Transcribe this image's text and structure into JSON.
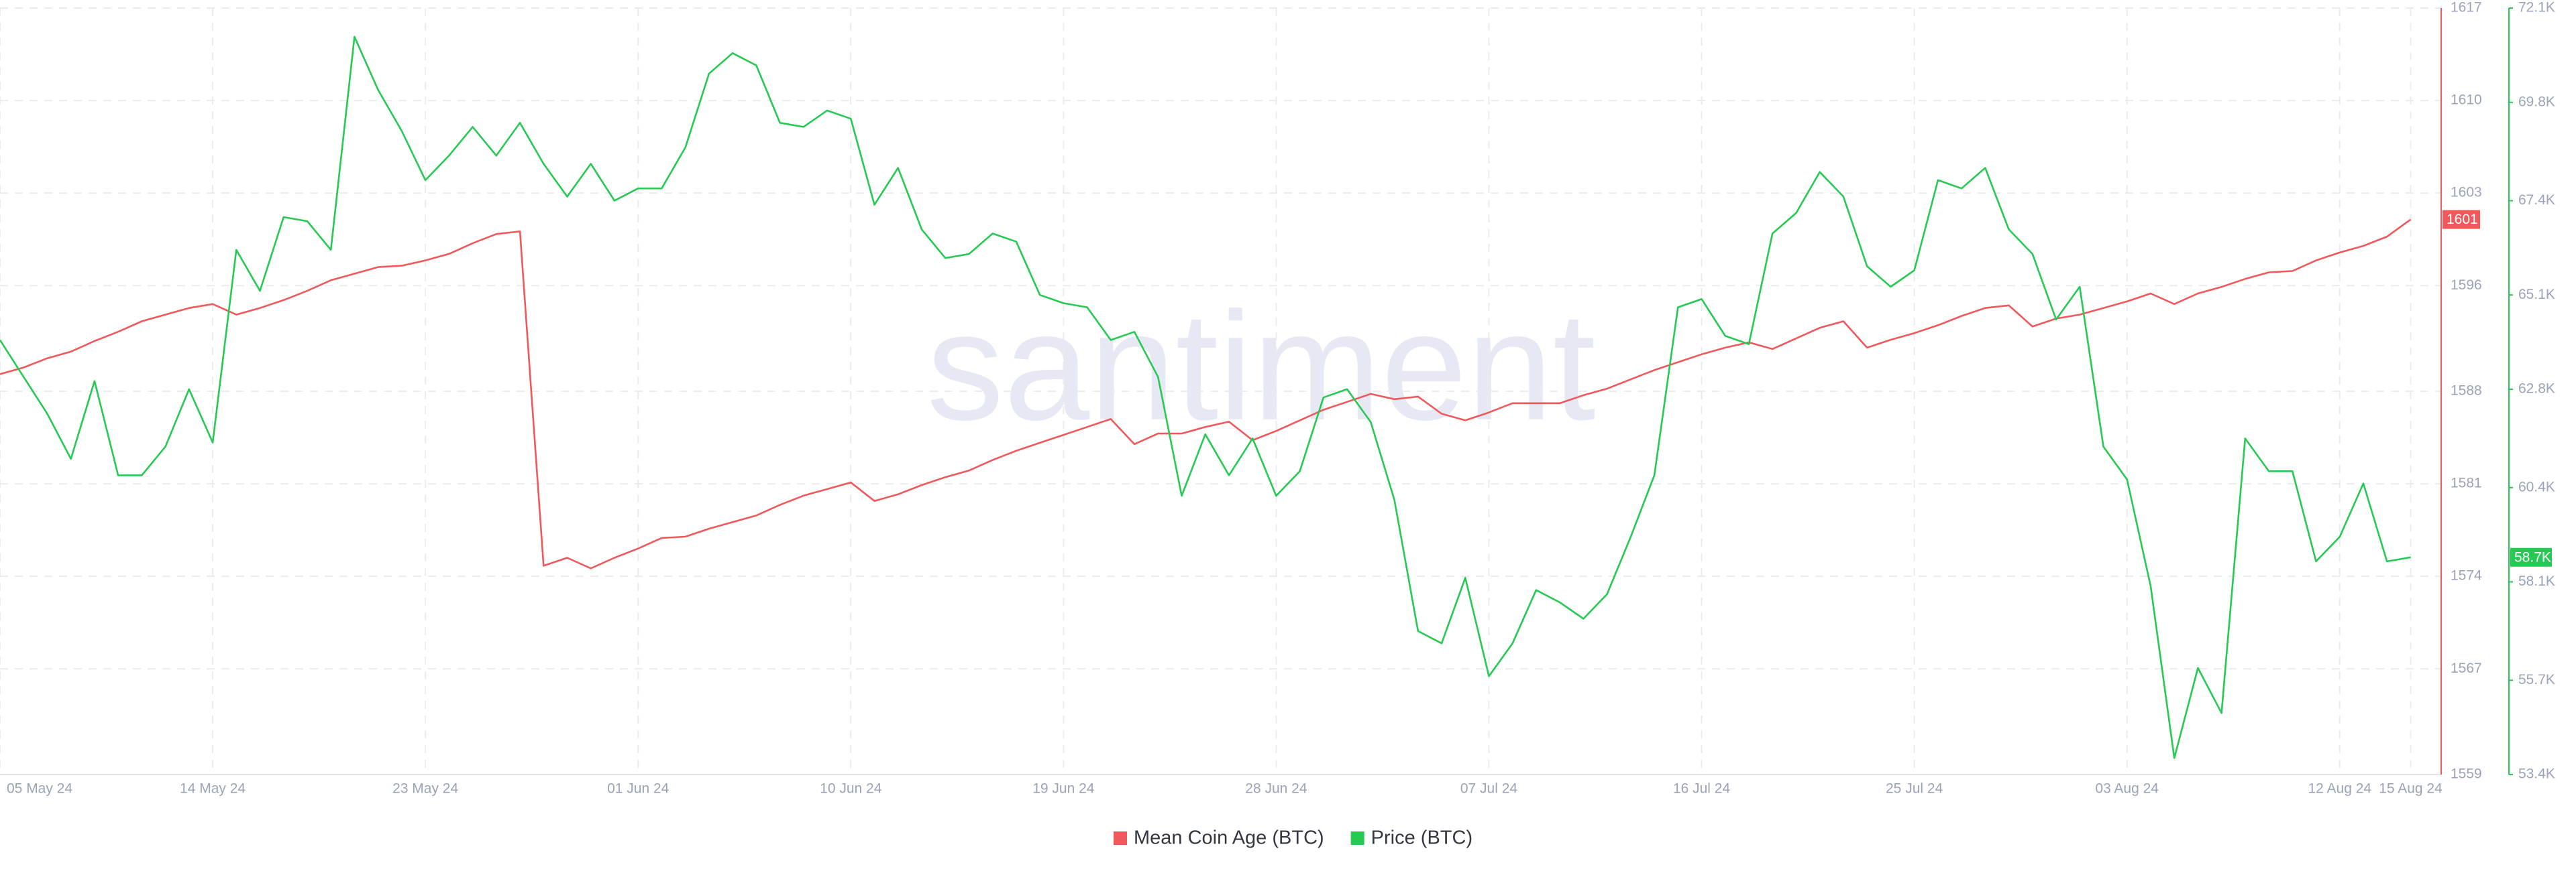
{
  "chart_data": {
    "type": "line",
    "watermark": "santiment",
    "x": [
      "2024-05-05",
      "2024-05-06",
      "2024-05-07",
      "2024-05-08",
      "2024-05-09",
      "2024-05-10",
      "2024-05-11",
      "2024-05-12",
      "2024-05-13",
      "2024-05-14",
      "2024-05-15",
      "2024-05-16",
      "2024-05-17",
      "2024-05-18",
      "2024-05-19",
      "2024-05-20",
      "2024-05-21",
      "2024-05-22",
      "2024-05-23",
      "2024-05-24",
      "2024-05-25",
      "2024-05-26",
      "2024-05-27",
      "2024-05-28",
      "2024-05-29",
      "2024-05-30",
      "2024-05-31",
      "2024-06-01",
      "2024-06-02",
      "2024-06-03",
      "2024-06-04",
      "2024-06-05",
      "2024-06-06",
      "2024-06-07",
      "2024-06-08",
      "2024-06-09",
      "2024-06-10",
      "2024-06-11",
      "2024-06-12",
      "2024-06-13",
      "2024-06-14",
      "2024-06-15",
      "2024-06-16",
      "2024-06-17",
      "2024-06-18",
      "2024-06-19",
      "2024-06-20",
      "2024-06-21",
      "2024-06-22",
      "2024-06-23",
      "2024-06-24",
      "2024-06-25",
      "2024-06-26",
      "2024-06-27",
      "2024-06-28",
      "2024-06-29",
      "2024-06-30",
      "2024-07-01",
      "2024-07-02",
      "2024-07-03",
      "2024-07-04",
      "2024-07-05",
      "2024-07-06",
      "2024-07-07",
      "2024-07-08",
      "2024-07-09",
      "2024-07-10",
      "2024-07-11",
      "2024-07-12",
      "2024-07-13",
      "2024-07-14",
      "2024-07-15",
      "2024-07-16",
      "2024-07-17",
      "2024-07-18",
      "2024-07-19",
      "2024-07-20",
      "2024-07-21",
      "2024-07-22",
      "2024-07-23",
      "2024-07-24",
      "2024-07-25",
      "2024-07-26",
      "2024-07-27",
      "2024-07-28",
      "2024-07-29",
      "2024-07-30",
      "2024-07-31",
      "2024-08-01",
      "2024-08-02",
      "2024-08-03",
      "2024-08-04",
      "2024-08-05",
      "2024-08-06",
      "2024-08-07",
      "2024-08-08",
      "2024-08-09",
      "2024-08-10",
      "2024-08-11",
      "2024-08-12",
      "2024-08-13",
      "2024-08-14",
      "2024-08-15"
    ],
    "xticks": [
      {
        "value": "2024-05-05",
        "label": "05 May 24"
      },
      {
        "value": "2024-05-14",
        "label": "14 May 24"
      },
      {
        "value": "2024-05-23",
        "label": "23 May 24"
      },
      {
        "value": "2024-06-01",
        "label": "01 Jun 24"
      },
      {
        "value": "2024-06-10",
        "label": "10 Jun 24"
      },
      {
        "value": "2024-06-19",
        "label": "19 Jun 24"
      },
      {
        "value": "2024-06-28",
        "label": "28 Jun 24"
      },
      {
        "value": "2024-07-07",
        "label": "07 Jul 24"
      },
      {
        "value": "2024-07-16",
        "label": "16 Jul 24"
      },
      {
        "value": "2024-07-25",
        "label": "25 Jul 24"
      },
      {
        "value": "2024-08-03",
        "label": "03 Aug 24"
      },
      {
        "value": "2024-08-12",
        "label": "12 Aug 24"
      },
      {
        "value": "2024-08-15",
        "label": "15 Aug 24"
      }
    ],
    "ylim": [
      1559,
      1617
    ],
    "yticks": [
      1559,
      1567,
      1574,
      1581,
      1588,
      1596,
      1603,
      1610,
      1617
    ],
    "y2lim": [
      53400,
      72100
    ],
    "y2ticks": [
      {
        "value": 53400,
        "label": "53.4K"
      },
      {
        "value": 55700,
        "label": "55.7K"
      },
      {
        "value": 58100,
        "label": "58.1K"
      },
      {
        "value": 60400,
        "label": "60.4K"
      },
      {
        "value": 62800,
        "label": "62.8K"
      },
      {
        "value": 65100,
        "label": "65.1K"
      },
      {
        "value": 67400,
        "label": "67.4K"
      },
      {
        "value": 69800,
        "label": "69.8K"
      },
      {
        "value": 72100,
        "label": "72.1K"
      }
    ],
    "grid": true,
    "legend": "bottom",
    "series": [
      {
        "name": "Mean Coin Age (BTC)",
        "color": "#f0585b",
        "last_label": "1601",
        "values": [
          1589.3,
          1589.8,
          1590.5,
          1591.0,
          1591.8,
          1592.5,
          1593.3,
          1593.8,
          1594.3,
          1594.6,
          1593.8,
          1594.3,
          1594.9,
          1595.6,
          1596.4,
          1596.9,
          1597.4,
          1597.5,
          1597.9,
          1598.4,
          1599.2,
          1599.9,
          1600.1,
          1574.8,
          1575.4,
          1574.6,
          1575.4,
          1576.1,
          1576.9,
          1577.0,
          1577.6,
          1578.1,
          1578.6,
          1579.4,
          1580.1,
          1580.6,
          1581.1,
          1579.7,
          1580.2,
          1580.9,
          1581.5,
          1582.0,
          1582.8,
          1583.5,
          1584.1,
          1584.7,
          1585.3,
          1585.9,
          1584.0,
          1584.8,
          1584.8,
          1585.3,
          1585.7,
          1584.3,
          1585.0,
          1585.8,
          1586.6,
          1587.2,
          1587.8,
          1587.4,
          1587.6,
          1586.3,
          1585.8,
          1586.4,
          1587.1,
          1587.1,
          1587.1,
          1587.7,
          1588.2,
          1588.9,
          1589.6,
          1590.2,
          1590.8,
          1591.3,
          1591.7,
          1591.2,
          1592.0,
          1592.8,
          1593.3,
          1591.3,
          1591.9,
          1592.4,
          1593.0,
          1593.7,
          1594.3,
          1594.5,
          1592.9,
          1593.5,
          1593.8,
          1594.3,
          1594.8,
          1595.4,
          1594.6,
          1595.4,
          1595.9,
          1596.5,
          1597.0,
          1597.1,
          1597.9,
          1598.5,
          1599.0,
          1599.7,
          1601
        ]
      },
      {
        "name": "Price (BTC)",
        "color": "#26c953",
        "axis": "y2",
        "last_label": "58.7K",
        "values": [
          64000,
          63100,
          62200,
          61100,
          63000,
          60700,
          60700,
          61400,
          62800,
          61500,
          66200,
          65200,
          67000,
          66900,
          66200,
          71400,
          70100,
          69100,
          67900,
          68500,
          69200,
          68500,
          69300,
          68300,
          67500,
          68300,
          67400,
          67700,
          67700,
          68700,
          70500,
          71000,
          70700,
          69300,
          69200,
          69600,
          69400,
          67300,
          68200,
          66700,
          66000,
          66100,
          66600,
          66400,
          65100,
          64900,
          64800,
          64000,
          64200,
          63100,
          60200,
          61700,
          60700,
          61600,
          60200,
          60800,
          62600,
          62800,
          62000,
          60100,
          56900,
          56600,
          58200,
          55800,
          56600,
          57900,
          57600,
          57200,
          57800,
          59200,
          60700,
          64800,
          65000,
          64100,
          63900,
          66600,
          67100,
          68100,
          67500,
          65800,
          65300,
          65700,
          67900,
          67700,
          68200,
          66700,
          66100,
          64500,
          65300,
          61400,
          60600,
          58000,
          53800,
          56000,
          54900,
          61600,
          60800,
          60800,
          58600,
          59200,
          60500,
          58600,
          58700
        ]
      }
    ]
  }
}
